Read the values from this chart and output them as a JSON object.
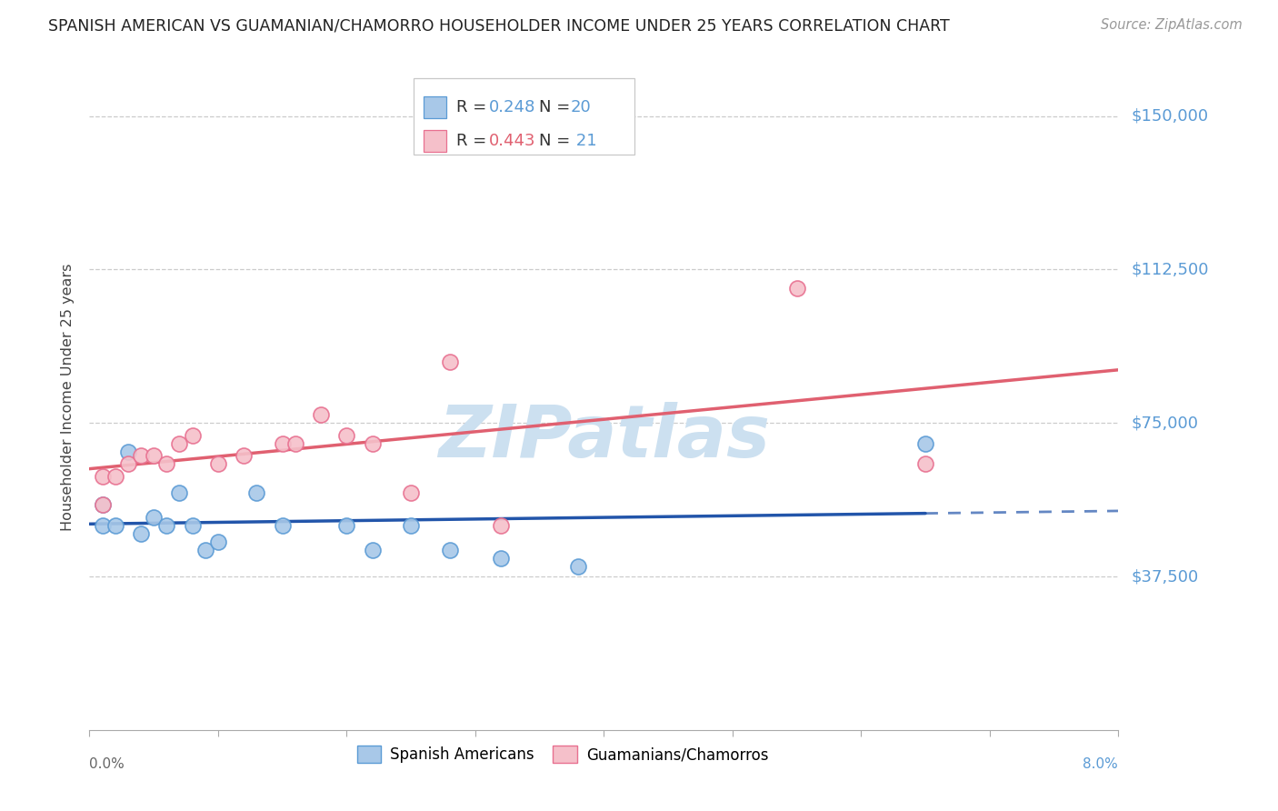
{
  "title": "SPANISH AMERICAN VS GUAMANIAN/CHAMORRO HOUSEHOLDER INCOME UNDER 25 YEARS CORRELATION CHART",
  "source": "Source: ZipAtlas.com",
  "ylabel": "Householder Income Under 25 years",
  "xmin": 0.0,
  "xmax": 0.08,
  "ymin": 0,
  "ymax": 162500,
  "ytick_vals": [
    37500,
    75000,
    112500,
    150000
  ],
  "ytick_labels": [
    "$37,500",
    "$75,000",
    "$112,500",
    "$150,000"
  ],
  "blue_face": "#a8c8e8",
  "blue_edge": "#5b9bd5",
  "pink_face": "#f5c0ca",
  "pink_edge": "#e87090",
  "line_blue": "#2255aa",
  "line_pink": "#e06070",
  "right_label_color": "#5b9bd5",
  "grid_color": "#cccccc",
  "watermark_color": "#cce0f0",
  "spanish_x": [
    0.001,
    0.001,
    0.002,
    0.003,
    0.004,
    0.005,
    0.006,
    0.007,
    0.008,
    0.009,
    0.01,
    0.013,
    0.015,
    0.02,
    0.022,
    0.025,
    0.028,
    0.032,
    0.038,
    0.065
  ],
  "spanish_y": [
    50000,
    55000,
    50000,
    68000,
    48000,
    52000,
    50000,
    58000,
    50000,
    44000,
    46000,
    58000,
    50000,
    50000,
    44000,
    50000,
    44000,
    42000,
    40000,
    70000
  ],
  "guam_x": [
    0.001,
    0.001,
    0.002,
    0.003,
    0.004,
    0.005,
    0.006,
    0.007,
    0.008,
    0.01,
    0.012,
    0.015,
    0.016,
    0.018,
    0.02,
    0.022,
    0.025,
    0.028,
    0.032,
    0.055,
    0.065
  ],
  "guam_y": [
    55000,
    62000,
    62000,
    65000,
    67000,
    67000,
    65000,
    70000,
    72000,
    65000,
    67000,
    70000,
    70000,
    77000,
    72000,
    70000,
    58000,
    90000,
    50000,
    108000,
    65000
  ]
}
